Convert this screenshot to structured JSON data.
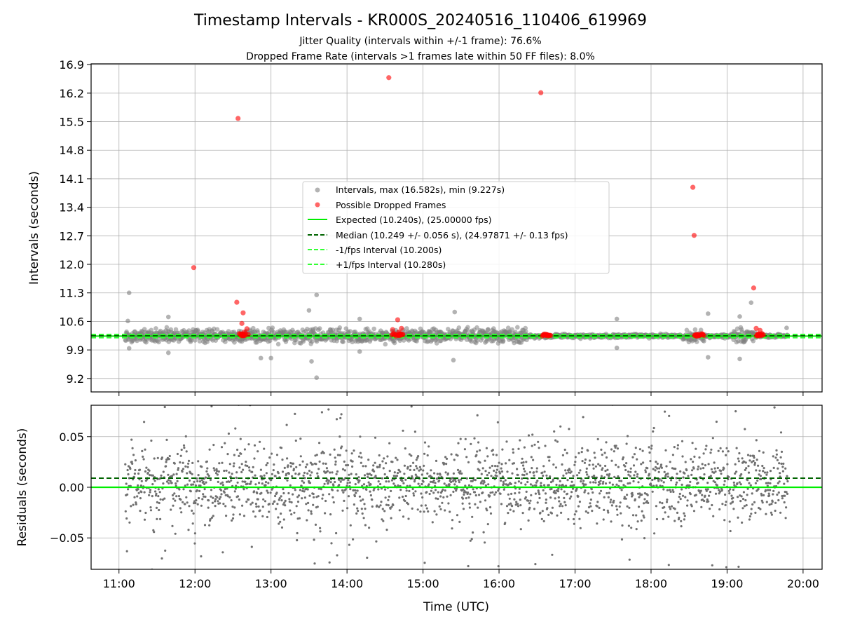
{
  "chart_data": [
    {
      "type": "scatter",
      "panel": "top",
      "title": "Timestamp Intervals - KR000S_20240516_110406_619969",
      "subtitles": [
        "Jitter Quality (intervals within +/-1 frame): 76.6%",
        "Dropped Frame Rate (intervals >1 frames late within 50 FF files): 8.0%"
      ],
      "ylabel": "Intervals (seconds)",
      "ylim": [
        8.87,
        16.92
      ],
      "xlim": [
        "10:38",
        "20:15"
      ],
      "yticks": [
        "9.2",
        "9.9",
        "10.6",
        "11.3",
        "12.0",
        "12.7",
        "13.4",
        "14.1",
        "14.8",
        "15.5",
        "16.2",
        "16.9"
      ],
      "grid": true,
      "legend_placement": "center",
      "legend": [
        "Intervals, max (16.582s), min (9.227s)",
        "Possible Dropped Frames",
        "Expected (10.240s), (25.00000 fps)",
        "Median (10.249 +/- 0.056 s), (24.97871 +/- 0.13 fps)",
        "-1/fps Interval (10.200s)",
        "+1/fps Interval (10.280s)"
      ],
      "reference_lines": {
        "expected": 10.24,
        "median": 10.249,
        "minus_interval": 10.2,
        "plus_interval": 10.28
      },
      "dropped_frames": [
        [
          "11:59",
          11.92
        ],
        [
          "12:33",
          11.07
        ],
        [
          "12:34",
          15.58
        ],
        [
          "12:37",
          10.55
        ],
        [
          "12:38",
          10.81
        ],
        [
          "12:35",
          10.3
        ],
        [
          "12:37",
          10.27
        ],
        [
          "12:39",
          10.34
        ],
        [
          "12:41",
          10.42
        ],
        [
          "12:42",
          10.28
        ],
        [
          "14:33",
          16.58
        ],
        [
          "14:36",
          10.4
        ],
        [
          "14:37",
          10.3
        ],
        [
          "14:38",
          10.27
        ],
        [
          "14:40",
          10.64
        ],
        [
          "14:41",
          10.34
        ],
        [
          "14:43",
          10.43
        ],
        [
          "14:44",
          10.27
        ],
        [
          "16:33",
          16.21
        ],
        [
          "16:35",
          10.26
        ],
        [
          "16:38",
          10.27
        ],
        [
          "16:40",
          10.26
        ],
        [
          "18:33",
          13.89
        ],
        [
          "18:34",
          12.71
        ],
        [
          "18:35",
          10.27
        ],
        [
          "18:38",
          10.26
        ],
        [
          "18:41",
          10.27
        ],
        [
          "19:21",
          11.42
        ],
        [
          "19:23",
          10.43
        ],
        [
          "19:24",
          10.26
        ],
        [
          "19:26",
          10.38
        ],
        [
          "19:28",
          10.26
        ]
      ],
      "outlier_intervals": [
        [
          "11:08",
          11.3
        ],
        [
          "11:07",
          10.61
        ],
        [
          "11:08",
          9.94
        ],
        [
          "11:39",
          10.71
        ],
        [
          "11:39",
          9.83
        ],
        [
          "12:52",
          9.7
        ],
        [
          "13:00",
          9.7
        ],
        [
          "13:32",
          9.62
        ],
        [
          "13:36",
          9.22
        ],
        [
          "13:36",
          11.25
        ],
        [
          "13:30",
          10.87
        ],
        [
          "14:10",
          10.66
        ],
        [
          "14:10",
          9.86
        ],
        [
          "15:24",
          9.65
        ],
        [
          "15:25",
          10.83
        ],
        [
          "17:33",
          10.66
        ],
        [
          "17:33",
          9.95
        ],
        [
          "18:45",
          10.79
        ],
        [
          "18:45",
          9.72
        ],
        [
          "19:10",
          9.68
        ],
        [
          "19:10",
          10.72
        ],
        [
          "19:19",
          11.06
        ],
        [
          "19:47",
          10.44
        ]
      ],
      "scatter_note_series": {
        "x_range": [
          "11:05",
          "19:48"
        ],
        "y_center": 10.24,
        "spread_max_active": 0.3,
        "active_periods": [
          [
            "11:05",
            "16:22"
          ],
          [
            "18:25",
            "18:42"
          ],
          [
            "19:05",
            "19:22"
          ]
        ],
        "quiet_spread": 0.04
      }
    },
    {
      "type": "scatter",
      "panel": "bottom",
      "xlabel": "Time (UTC)",
      "ylabel": "Residuals (seconds)",
      "ylim": [
        -0.081,
        0.081
      ],
      "xlim": [
        "10:38",
        "20:15"
      ],
      "yticks": [
        "−0.05",
        "0.00",
        "0.05"
      ],
      "ytick_values": [
        -0.05,
        0,
        0.05
      ],
      "xticks": [
        "11:00",
        "12:00",
        "13:00",
        "14:00",
        "15:00",
        "16:00",
        "17:00",
        "18:00",
        "19:00",
        "20:00"
      ],
      "grid": true,
      "reference_lines": {
        "zero": 0.0,
        "median_offset": 0.009
      },
      "residual_spread": {
        "x_range": [
          "11:05",
          "19:48"
        ],
        "sigma": 0.025
      }
    }
  ],
  "colors": {
    "intervals": "#808080",
    "dropped": "#ff0000",
    "expected": "#00ee00",
    "median": "#006400",
    "fps_bounds": "#33ff33",
    "grid": "#b0b0b0",
    "residuals": "#707070"
  }
}
